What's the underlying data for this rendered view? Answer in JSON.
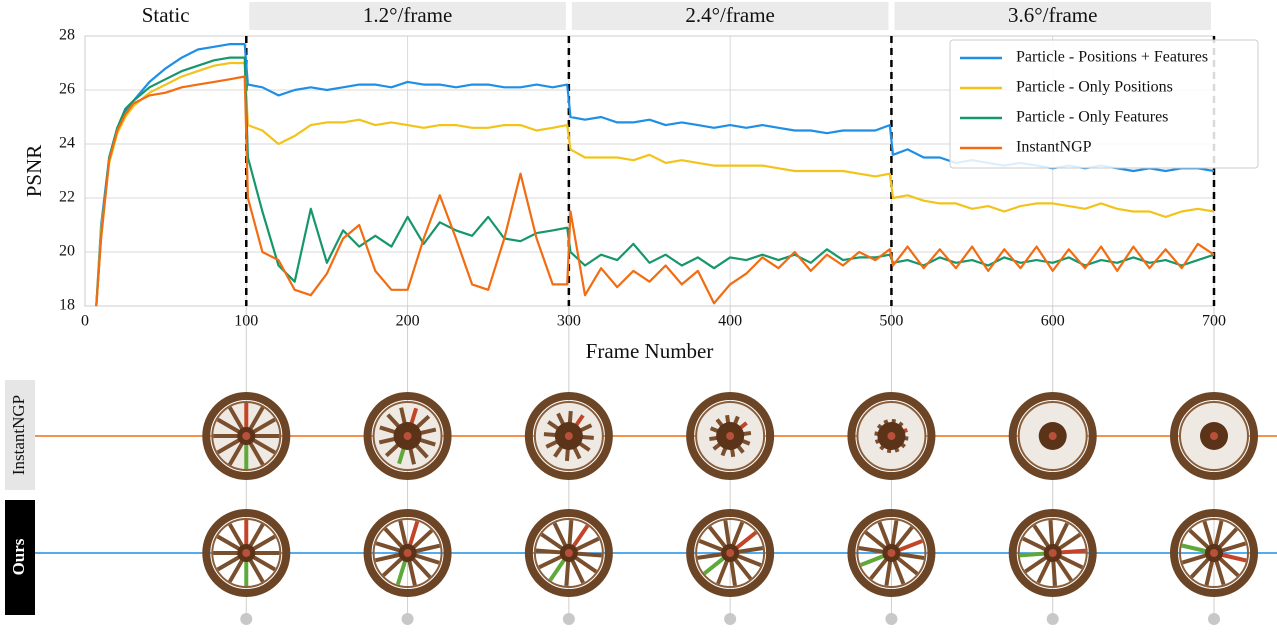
{
  "chart_data": {
    "type": "line",
    "xlabel": "Frame Number",
    "ylabel": "PSNR",
    "phases": [
      {
        "label": "Static",
        "range": [
          0,
          100
        ]
      },
      {
        "label": "1.2°/frame",
        "range": [
          100,
          300
        ]
      },
      {
        "label": "2.4°/frame",
        "range": [
          300,
          500
        ]
      },
      {
        "label": "3.6°/frame",
        "range": [
          500,
          700
        ]
      }
    ],
    "xlim": [
      0,
      700
    ],
    "xticks": [
      0,
      100,
      200,
      300,
      400,
      500,
      600,
      700
    ],
    "ylim": [
      18,
      28
    ],
    "yticks": [
      18,
      20,
      22,
      24,
      26,
      28
    ],
    "grid": true,
    "legend": "upper right",
    "x": [
      7,
      10,
      15,
      20,
      25,
      30,
      40,
      50,
      60,
      70,
      80,
      90,
      99,
      101,
      110,
      120,
      130,
      140,
      150,
      160,
      170,
      180,
      190,
      200,
      210,
      220,
      230,
      240,
      250,
      260,
      270,
      280,
      290,
      299,
      301,
      310,
      320,
      330,
      340,
      350,
      360,
      370,
      380,
      390,
      400,
      410,
      420,
      430,
      440,
      450,
      460,
      470,
      480,
      490,
      499,
      501,
      510,
      520,
      530,
      540,
      550,
      560,
      570,
      580,
      590,
      600,
      610,
      620,
      630,
      640,
      650,
      660,
      670,
      680,
      690,
      700
    ],
    "series": [
      {
        "name": "Particle - Positions + Features",
        "color": "#1f8fe6",
        "values": [
          18,
          21,
          23.5,
          24.6,
          25.2,
          25.6,
          26.3,
          26.8,
          27.2,
          27.5,
          27.6,
          27.7,
          27.7,
          26.2,
          26.1,
          25.8,
          26.0,
          26.1,
          26.0,
          26.1,
          26.2,
          26.2,
          26.1,
          26.3,
          26.2,
          26.2,
          26.1,
          26.2,
          26.2,
          26.1,
          26.1,
          26.2,
          26.1,
          26.2,
          25.0,
          24.9,
          25.0,
          24.8,
          24.8,
          24.9,
          24.7,
          24.8,
          24.7,
          24.6,
          24.7,
          24.6,
          24.7,
          24.6,
          24.5,
          24.5,
          24.4,
          24.5,
          24.5,
          24.5,
          24.7,
          23.6,
          23.8,
          23.5,
          23.5,
          23.3,
          23.4,
          23.3,
          23.2,
          23.3,
          23.2,
          23.1,
          23.2,
          23.1,
          23.2,
          23.1,
          23.0,
          23.1,
          23.0,
          23.1,
          23.1,
          23.0
        ]
      },
      {
        "name": "Particle - Only Positions",
        "color": "#f2c31b",
        "values": [
          18,
          20.8,
          23.3,
          24.4,
          25.0,
          25.4,
          25.9,
          26.2,
          26.5,
          26.7,
          26.9,
          27.0,
          27.0,
          24.7,
          24.5,
          24.0,
          24.3,
          24.7,
          24.8,
          24.8,
          24.9,
          24.7,
          24.8,
          24.7,
          24.6,
          24.7,
          24.7,
          24.6,
          24.6,
          24.7,
          24.7,
          24.5,
          24.6,
          24.7,
          23.8,
          23.5,
          23.5,
          23.5,
          23.4,
          23.6,
          23.3,
          23.4,
          23.3,
          23.2,
          23.2,
          23.2,
          23.2,
          23.1,
          23.0,
          23.0,
          23.0,
          23.0,
          22.9,
          22.8,
          22.9,
          22.0,
          22.1,
          21.9,
          21.8,
          21.8,
          21.6,
          21.7,
          21.5,
          21.7,
          21.8,
          21.8,
          21.7,
          21.6,
          21.8,
          21.6,
          21.5,
          21.5,
          21.3,
          21.5,
          21.6,
          21.5
        ]
      },
      {
        "name": "Particle - Only Features",
        "color": "#16976a",
        "values": [
          18,
          20.6,
          23.5,
          24.6,
          25.3,
          25.6,
          26.1,
          26.4,
          26.7,
          26.9,
          27.1,
          27.2,
          27.2,
          23.5,
          21.5,
          19.5,
          18.9,
          21.6,
          19.6,
          20.8,
          20.2,
          20.6,
          20.2,
          21.3,
          20.3,
          21.1,
          20.8,
          20.6,
          21.3,
          20.5,
          20.4,
          20.7,
          20.8,
          20.9,
          20.0,
          19.5,
          19.9,
          19.7,
          20.3,
          19.6,
          19.9,
          19.5,
          19.8,
          19.4,
          19.8,
          19.7,
          19.9,
          19.7,
          19.9,
          19.6,
          20.1,
          19.7,
          19.8,
          19.8,
          19.9,
          19.6,
          19.7,
          19.5,
          19.8,
          19.6,
          19.7,
          19.5,
          19.8,
          19.6,
          19.7,
          19.6,
          19.8,
          19.5,
          19.7,
          19.6,
          19.8,
          19.6,
          19.7,
          19.5,
          19.7,
          19.9
        ]
      },
      {
        "name": "InstantNGP",
        "color": "#f26c12",
        "values": [
          18,
          20.5,
          23.4,
          24.5,
          25.1,
          25.5,
          25.8,
          25.9,
          26.1,
          26.2,
          26.3,
          26.4,
          26.5,
          22.0,
          20.0,
          19.7,
          18.6,
          18.4,
          19.2,
          20.5,
          21.0,
          19.3,
          18.6,
          18.6,
          20.5,
          22.1,
          20.5,
          18.8,
          18.6,
          20.5,
          22.9,
          20.5,
          18.8,
          18.8,
          21.5,
          18.4,
          19.4,
          18.7,
          19.3,
          18.9,
          19.5,
          18.8,
          19.3,
          18.1,
          18.8,
          19.2,
          19.8,
          19.4,
          20.0,
          19.3,
          19.9,
          19.5,
          20.0,
          19.7,
          20.1,
          19.5,
          20.2,
          19.4,
          20.1,
          19.4,
          20.2,
          19.3,
          20.1,
          19.4,
          20.2,
          19.3,
          20.1,
          19.4,
          20.2,
          19.3,
          20.2,
          19.4,
          20.1,
          19.4,
          20.3,
          19.9
        ]
      }
    ]
  },
  "rows": [
    {
      "label": "InstantNGP"
    },
    {
      "label": "Ours"
    }
  ]
}
